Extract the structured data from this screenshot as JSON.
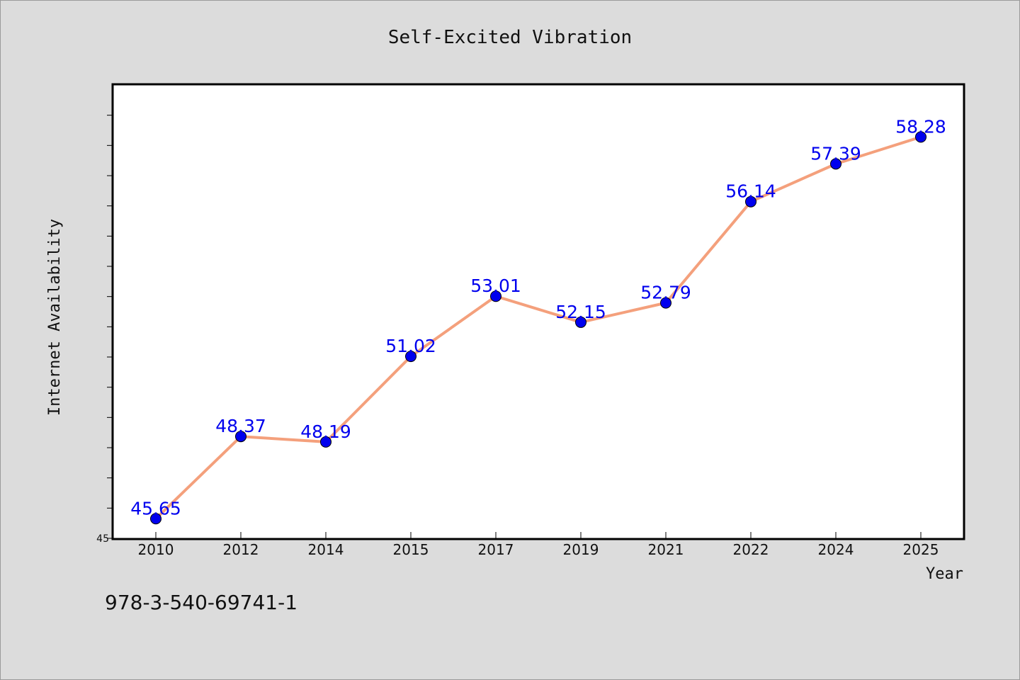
{
  "chart_data": {
    "type": "line",
    "title": "Self-Excited Vibration",
    "xlabel": "Year",
    "ylabel": "Internet Availability",
    "categories": [
      "2010",
      "2012",
      "2014",
      "2015",
      "2017",
      "2019",
      "2021",
      "2022",
      "2024",
      "2025"
    ],
    "series": [
      {
        "values": [
          45.65,
          48.37,
          48.19,
          51.02,
          53.01,
          52.15,
          52.79,
          56.14,
          57.39,
          58.28
        ],
        "labels": [
          "45.65",
          "48.37",
          "48.19",
          "51.02",
          "53.01",
          "52.15",
          "52.79",
          "56.14",
          "57.39",
          "58.28"
        ],
        "line_color": "#f4a07c",
        "marker_color": "#0000ee",
        "label_color": "#0000ee"
      }
    ],
    "ylim": [
      45,
      60
    ],
    "y_tick_labels": [
      "45"
    ],
    "grid": false,
    "legend": "none"
  },
  "footer": {
    "identifier": "978-3-540-69741-1"
  }
}
